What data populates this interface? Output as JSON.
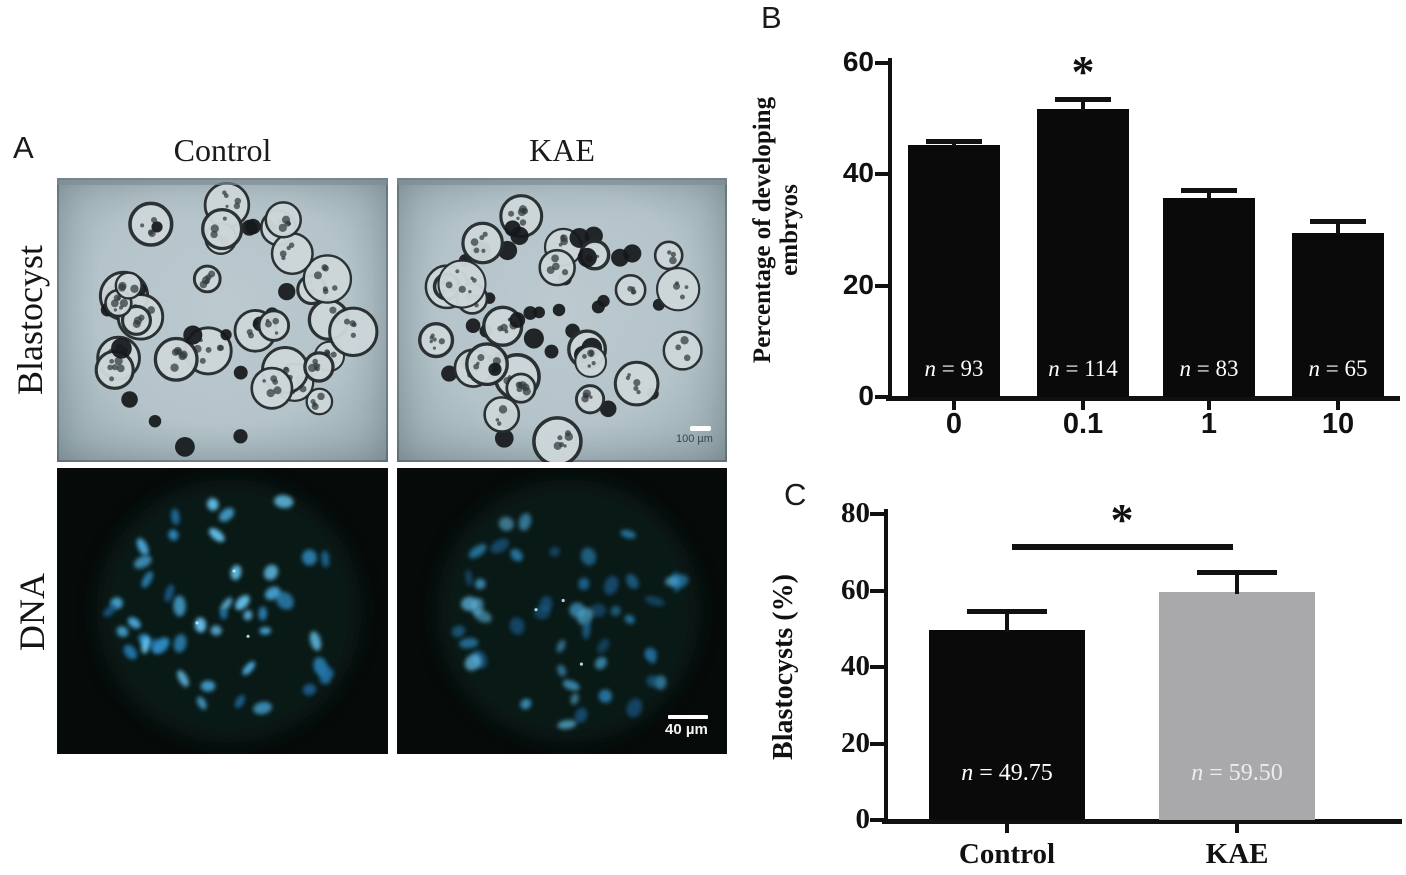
{
  "figure": {
    "panel_a": {
      "label": "A",
      "column_headers": [
        "Control",
        "KAE"
      ],
      "row_labels": [
        "Blastocyst",
        "DNA"
      ],
      "scale_bar_blastocyst": "100 µm",
      "scale_bar_dna": "40 µm",
      "microscopy_images": [
        "blastocyst-control-brightfield",
        "blastocyst-kae-brightfield",
        "dna-control-fluorescence",
        "dna-kae-fluorescence"
      ]
    },
    "panel_b": {
      "label": "B"
    },
    "panel_c": {
      "label": "C"
    }
  },
  "chart_data": [
    {
      "panel": "B",
      "type": "bar",
      "categories": [
        "0",
        "0.1",
        "1",
        "10"
      ],
      "values": [
        45.2,
        51.8,
        35.8,
        29.5
      ],
      "errors": [
        0.5,
        1.4,
        1.0,
        1.7
      ],
      "bar_labels": [
        "n = 93",
        "n = 114",
        "n = 83",
        "n = 65"
      ],
      "bar_label_colors": [
        "#ffffff",
        "#ffffff",
        "#ffffff",
        "#ffffff"
      ],
      "bar_colors": [
        "#0a0a0a",
        "#0a0a0a",
        "#0a0a0a",
        "#0a0a0a"
      ],
      "ylabel": "Percentage of developing embryos",
      "yticks": [
        0,
        20,
        40,
        60
      ],
      "ylim": [
        0,
        60
      ],
      "grid": false,
      "significance": {
        "symbol": "*",
        "over_category": "0.1"
      },
      "axis_color": "#111111"
    },
    {
      "panel": "C",
      "type": "bar",
      "categories": [
        "Control",
        "KAE"
      ],
      "values": [
        49.75,
        59.5
      ],
      "errors": [
        4.4,
        4.8
      ],
      "bar_labels": [
        "n = 49.75",
        "n = 59.50"
      ],
      "bar_label_colors": [
        "#ffffff",
        "#ececec"
      ],
      "bar_colors": [
        "#0a0a0a",
        "#a9a9ab"
      ],
      "ylabel": "Blastocysts (%)",
      "yticks": [
        0,
        20,
        40,
        60,
        80
      ],
      "ylim": [
        0,
        80
      ],
      "grid": false,
      "significance": {
        "symbol": "*",
        "between": [
          "Control",
          "KAE"
        ]
      },
      "axis_color": "#111111"
    }
  ]
}
